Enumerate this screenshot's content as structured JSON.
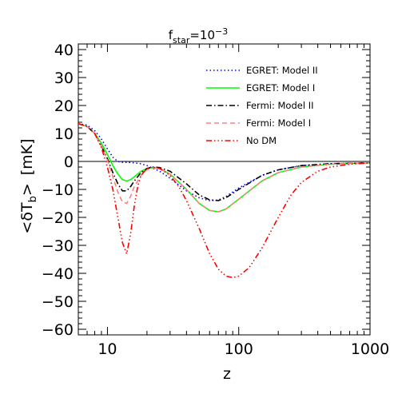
{
  "chart_data": {
    "type": "line",
    "title_base": "f",
    "title_sub": "star",
    "title_rest": "=10",
    "title_sup": "−3",
    "xlabel": "z",
    "ylabel_parts": {
      "open": "<",
      "delta": "δT",
      "sub": "b",
      "close": ">",
      "unit": "[mK]"
    },
    "xscale": "log",
    "xlim": [
      6,
      1000
    ],
    "ylim": [
      -62,
      42
    ],
    "xticks": [
      10,
      100,
      1000
    ],
    "xtick_labels": [
      "10",
      "100",
      "1000"
    ],
    "yticks": [
      40,
      30,
      20,
      10,
      0,
      -10,
      -20,
      -30,
      -40,
      -50,
      -60
    ],
    "ytick_labels": [
      "40",
      "30",
      "20",
      "10",
      "0",
      "−10",
      "−20",
      "−30",
      "−40",
      "−50",
      "−60"
    ],
    "zero_line": true,
    "grid": false,
    "legend_position": "top-right",
    "series": [
      {
        "name": "EGRET: Model II",
        "color": "#0000ff",
        "dash": "1.5,3",
        "x": [
          6,
          7,
          8,
          9,
          10,
          11,
          12,
          13,
          14,
          15,
          16,
          18,
          20,
          25,
          30,
          40,
          50,
          60,
          70,
          80,
          100,
          150,
          200,
          300,
          500,
          1000
        ],
        "y": [
          13.5,
          13,
          11,
          8,
          4.5,
          1.5,
          0,
          -0.3,
          -0.3,
          -0.4,
          -0.5,
          -0.8,
          -1.5,
          -3.5,
          -6,
          -10.5,
          -13,
          -14,
          -13.8,
          -12.5,
          -9.5,
          -5,
          -3,
          -1.5,
          -0.8,
          -0.5
        ]
      },
      {
        "name": "EGRET: Model I",
        "color": "#00ff00",
        "dash": "",
        "x": [
          6,
          7,
          8,
          9,
          10,
          11,
          12,
          13,
          14,
          15,
          16,
          18,
          20,
          22,
          25,
          30,
          40,
          50,
          60,
          70,
          80,
          100,
          150,
          200,
          300,
          500,
          1000
        ],
        "y": [
          13.5,
          12.5,
          10,
          6.5,
          2.5,
          -1.5,
          -4.5,
          -6.5,
          -7,
          -6.5,
          -5.5,
          -3.5,
          -2.5,
          -2.2,
          -2.5,
          -4.5,
          -10,
          -15,
          -17.5,
          -18,
          -17,
          -13.5,
          -7,
          -4,
          -2,
          -1,
          -0.5
        ]
      },
      {
        "name": "Fermi: Model II",
        "color": "#000000",
        "dash": "7,3,1.5,3",
        "x": [
          6,
          7,
          8,
          9,
          10,
          11,
          12,
          13,
          14,
          15,
          16,
          18,
          20,
          22,
          25,
          30,
          40,
          50,
          60,
          70,
          80,
          100,
          150,
          200,
          300,
          500,
          1000
        ],
        "y": [
          13.5,
          12.5,
          10,
          5.5,
          1,
          -4,
          -8,
          -10.5,
          -10.5,
          -9,
          -7,
          -4,
          -2.5,
          -2,
          -2.2,
          -3.5,
          -8,
          -12,
          -13.7,
          -14,
          -13,
          -10,
          -5,
          -3,
          -1.5,
          -0.8,
          -0.5
        ]
      },
      {
        "name": "Fermi: Model I",
        "color": "#ff8080",
        "dash": "6,4",
        "x": [
          6,
          7,
          8,
          9,
          10,
          11,
          12,
          13,
          14,
          15,
          16,
          18,
          20,
          22,
          25,
          30,
          40,
          50,
          60,
          70,
          80,
          100,
          150,
          200,
          300,
          500,
          1000
        ],
        "y": [
          13.5,
          12.5,
          10,
          5.5,
          0.5,
          -5.5,
          -11,
          -14.5,
          -15,
          -12.5,
          -9,
          -5,
          -3,
          -2.3,
          -2.5,
          -4.5,
          -10,
          -15,
          -17.5,
          -18,
          -17,
          -13.5,
          -7,
          -4,
          -2,
          -1,
          -0.5
        ]
      },
      {
        "name": "No DM",
        "color": "#ff0000",
        "dash": "7,3,1.5,3,1.5,3,1.5,3",
        "x": [
          6,
          7,
          8,
          9,
          10,
          11,
          12,
          13,
          14,
          15,
          16,
          17,
          18,
          20,
          22,
          25,
          30,
          35,
          40,
          50,
          60,
          70,
          80,
          90,
          100,
          120,
          150,
          200,
          250,
          300,
          400,
          500,
          700,
          1000
        ],
        "y": [
          13.5,
          12.5,
          10,
          5,
          -2,
          -10,
          -20,
          -29,
          -33,
          -26,
          -16,
          -9,
          -5,
          -2.5,
          -2,
          -2.5,
          -5,
          -9,
          -14,
          -24,
          -33,
          -38.5,
          -41,
          -41.5,
          -41,
          -38,
          -31,
          -20,
          -12,
          -7.5,
          -3.5,
          -2,
          -1,
          -0.5
        ]
      }
    ]
  }
}
